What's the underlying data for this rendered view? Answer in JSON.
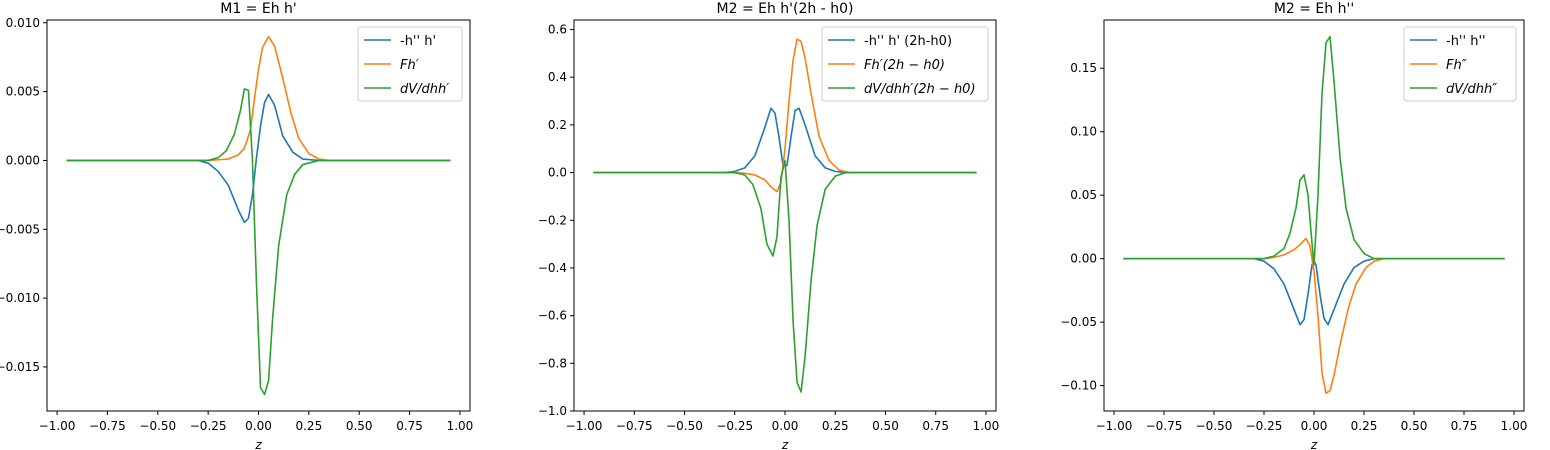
{
  "chart_data": [
    {
      "type": "line",
      "title": "M1 = Eh h'",
      "xlabel": "z",
      "xlim": [
        -1.05,
        1.05
      ],
      "ylim": [
        -0.0182,
        0.0102
      ],
      "xticks": [
        -1.0,
        -0.75,
        -0.5,
        -0.25,
        0.0,
        0.25,
        0.5,
        0.75,
        1.0
      ],
      "xtick_labels": [
        "−1.00",
        "−0.75",
        "−0.50",
        "−0.25",
        "0.00",
        "0.25",
        "0.50",
        "0.75",
        "1.00"
      ],
      "yticks": [
        0.01,
        0.005,
        0.0,
        -0.005,
        -0.01,
        -0.015
      ],
      "ytick_labels": [
        "0.010",
        "0.005",
        "0.000",
        "−0.005",
        "−0.010",
        "−0.015"
      ],
      "legend_position": "top-right",
      "series": [
        {
          "name": "-h'' h'",
          "color": "#1f77b4",
          "points": [
            [
              -0.95,
              0
            ],
            [
              -0.3,
              0.0
            ],
            [
              -0.25,
              -0.0002
            ],
            [
              -0.2,
              -0.0008
            ],
            [
              -0.15,
              -0.0018
            ],
            [
              -0.1,
              -0.0036
            ],
            [
              -0.07,
              -0.0045
            ],
            [
              -0.05,
              -0.0042
            ],
            [
              -0.03,
              -0.0025
            ],
            [
              -0.01,
              0.0002
            ],
            [
              0.01,
              0.0025
            ],
            [
              0.03,
              0.0042
            ],
            [
              0.05,
              0.0048
            ],
            [
              0.08,
              0.004
            ],
            [
              0.12,
              0.0018
            ],
            [
              0.17,
              0.0006
            ],
            [
              0.22,
              0.0001
            ],
            [
              0.3,
              0.0
            ],
            [
              0.95,
              0
            ]
          ]
        },
        {
          "name": "Fh′",
          "color": "#ff7f0e",
          "points": [
            [
              -0.95,
              0
            ],
            [
              -0.25,
              0.0
            ],
            [
              -0.2,
              5e-05
            ],
            [
              -0.15,
              0.0001
            ],
            [
              -0.1,
              0.0004
            ],
            [
              -0.07,
              0.0009
            ],
            [
              -0.04,
              0.0022
            ],
            [
              -0.02,
              0.0045
            ],
            [
              0.0,
              0.0066
            ],
            [
              0.02,
              0.0082
            ],
            [
              0.05,
              0.009
            ],
            [
              0.08,
              0.0083
            ],
            [
              0.12,
              0.006
            ],
            [
              0.16,
              0.0035
            ],
            [
              0.2,
              0.0016
            ],
            [
              0.25,
              0.0005
            ],
            [
              0.3,
              0.0001
            ],
            [
              0.35,
              0.0
            ],
            [
              0.95,
              0
            ]
          ]
        },
        {
          "name": "dV/dhh′",
          "color": "#2ca02c",
          "points": [
            [
              -0.95,
              0
            ],
            [
              -0.25,
              0.0
            ],
            [
              -0.2,
              0.0002
            ],
            [
              -0.16,
              0.0007
            ],
            [
              -0.12,
              0.0019
            ],
            [
              -0.09,
              0.0036
            ],
            [
              -0.07,
              0.0052
            ],
            [
              -0.05,
              0.0051
            ],
            [
              -0.03,
              0.0
            ],
            [
              -0.01,
              -0.009
            ],
            [
              0.01,
              -0.0165
            ],
            [
              0.03,
              -0.017
            ],
            [
              0.05,
              -0.016
            ],
            [
              0.07,
              -0.0115
            ],
            [
              0.1,
              -0.0062
            ],
            [
              0.14,
              -0.0025
            ],
            [
              0.18,
              -0.001
            ],
            [
              0.22,
              -0.0003
            ],
            [
              0.3,
              0.0
            ],
            [
              0.95,
              0
            ]
          ]
        }
      ]
    },
    {
      "type": "line",
      "title": "M2 = Eh h'(2h - h0)",
      "xlabel": "z",
      "xlim": [
        -1.05,
        1.05
      ],
      "ylim": [
        -1.0,
        0.64
      ],
      "xticks": [
        -1.0,
        -0.75,
        -0.5,
        -0.25,
        0.0,
        0.25,
        0.5,
        0.75,
        1.0
      ],
      "xtick_labels": [
        "−1.00",
        "−0.75",
        "−0.50",
        "−0.25",
        "0.00",
        "0.25",
        "0.50",
        "0.75",
        "1.00"
      ],
      "yticks": [
        0.6,
        0.4,
        0.2,
        0.0,
        -0.2,
        -0.4,
        -0.6,
        -0.8,
        -1.0
      ],
      "ytick_labels": [
        "0.6",
        "0.4",
        "0.2",
        "0.0",
        "−0.2",
        "−0.4",
        "−0.6",
        "−0.8",
        "−1.0"
      ],
      "legend_position": "top-right",
      "series": [
        {
          "name": "-h'' h' (2h-h0)",
          "color": "#1f77b4",
          "points": [
            [
              -0.95,
              0
            ],
            [
              -0.3,
              0.0
            ],
            [
              -0.25,
              0.005
            ],
            [
              -0.2,
              0.02
            ],
            [
              -0.15,
              0.07
            ],
            [
              -0.1,
              0.19
            ],
            [
              -0.07,
              0.27
            ],
            [
              -0.05,
              0.25
            ],
            [
              -0.03,
              0.15
            ],
            [
              -0.01,
              0.03
            ],
            [
              0.01,
              0.03
            ],
            [
              0.03,
              0.15
            ],
            [
              0.05,
              0.26
            ],
            [
              0.07,
              0.27
            ],
            [
              0.1,
              0.2
            ],
            [
              0.15,
              0.07
            ],
            [
              0.2,
              0.02
            ],
            [
              0.25,
              0.005
            ],
            [
              0.3,
              0.0
            ],
            [
              0.95,
              0
            ]
          ]
        },
        {
          "name": "Fh′(2h − h0)",
          "color": "#ff7f0e",
          "points": [
            [
              -0.95,
              0
            ],
            [
              -0.25,
              0.0
            ],
            [
              -0.2,
              -0.003
            ],
            [
              -0.15,
              -0.01
            ],
            [
              -0.1,
              -0.03
            ],
            [
              -0.07,
              -0.06
            ],
            [
              -0.04,
              -0.08
            ],
            [
              -0.02,
              -0.04
            ],
            [
              0.0,
              0.1
            ],
            [
              0.02,
              0.3
            ],
            [
              0.04,
              0.47
            ],
            [
              0.06,
              0.56
            ],
            [
              0.08,
              0.55
            ],
            [
              0.1,
              0.48
            ],
            [
              0.13,
              0.33
            ],
            [
              0.17,
              0.15
            ],
            [
              0.22,
              0.05
            ],
            [
              0.27,
              0.01
            ],
            [
              0.32,
              0.0
            ],
            [
              0.95,
              0
            ]
          ]
        },
        {
          "name": "dV/dhh′(2h − h0)",
          "color": "#2ca02c",
          "points": [
            [
              -0.95,
              0
            ],
            [
              -0.25,
              0.0
            ],
            [
              -0.2,
              -0.01
            ],
            [
              -0.16,
              -0.05
            ],
            [
              -0.12,
              -0.15
            ],
            [
              -0.09,
              -0.3
            ],
            [
              -0.06,
              -0.35
            ],
            [
              -0.04,
              -0.27
            ],
            [
              -0.02,
              -0.02
            ],
            [
              0.0,
              0.05
            ],
            [
              0.02,
              -0.2
            ],
            [
              0.04,
              -0.62
            ],
            [
              0.06,
              -0.88
            ],
            [
              0.08,
              -0.92
            ],
            [
              0.1,
              -0.77
            ],
            [
              0.13,
              -0.45
            ],
            [
              0.16,
              -0.22
            ],
            [
              0.2,
              -0.07
            ],
            [
              0.25,
              -0.015
            ],
            [
              0.3,
              0.0
            ],
            [
              0.95,
              0
            ]
          ]
        }
      ]
    },
    {
      "type": "line",
      "title": "M2 = Eh h''",
      "xlabel": "z",
      "xlim": [
        -1.05,
        1.05
      ],
      "ylim": [
        -0.12,
        0.188
      ],
      "xticks": [
        -1.0,
        -0.75,
        -0.5,
        -0.25,
        0.0,
        0.25,
        0.5,
        0.75,
        1.0
      ],
      "xtick_labels": [
        "−1.00",
        "−0.75",
        "−0.50",
        "−0.25",
        "0.00",
        "0.25",
        "0.50",
        "0.75",
        "1.00"
      ],
      "yticks": [
        0.15,
        0.1,
        0.05,
        0.0,
        -0.05,
        -0.1
      ],
      "ytick_labels": [
        "0.15",
        "0.10",
        "0.05",
        "0.00",
        "−0.05",
        "−0.10"
      ],
      "legend_position": "top-right",
      "series": [
        {
          "name": "-h'' h''",
          "color": "#1f77b4",
          "points": [
            [
              -0.95,
              0
            ],
            [
              -0.3,
              0.0
            ],
            [
              -0.25,
              -0.002
            ],
            [
              -0.2,
              -0.008
            ],
            [
              -0.15,
              -0.02
            ],
            [
              -0.1,
              -0.04
            ],
            [
              -0.07,
              -0.052
            ],
            [
              -0.05,
              -0.048
            ],
            [
              -0.03,
              -0.028
            ],
            [
              -0.01,
              -0.005
            ],
            [
              0.0,
              -0.002
            ],
            [
              0.01,
              -0.005
            ],
            [
              0.03,
              -0.028
            ],
            [
              0.05,
              -0.047
            ],
            [
              0.07,
              -0.052
            ],
            [
              0.1,
              -0.04
            ],
            [
              0.15,
              -0.02
            ],
            [
              0.2,
              -0.007
            ],
            [
              0.25,
              -0.002
            ],
            [
              0.3,
              0.0
            ],
            [
              0.95,
              0
            ]
          ]
        },
        {
          "name": "Fh″",
          "color": "#ff7f0e",
          "points": [
            [
              -0.95,
              0
            ],
            [
              -0.25,
              0.0
            ],
            [
              -0.2,
              0.001
            ],
            [
              -0.15,
              0.003
            ],
            [
              -0.1,
              0.007
            ],
            [
              -0.07,
              0.011
            ],
            [
              -0.04,
              0.016
            ],
            [
              -0.02,
              0.01
            ],
            [
              0.0,
              -0.01
            ],
            [
              0.02,
              -0.045
            ],
            [
              0.04,
              -0.09
            ],
            [
              0.06,
              -0.106
            ],
            [
              0.08,
              -0.104
            ],
            [
              0.1,
              -0.092
            ],
            [
              0.13,
              -0.068
            ],
            [
              0.17,
              -0.04
            ],
            [
              0.21,
              -0.02
            ],
            [
              0.26,
              -0.007
            ],
            [
              0.3,
              -0.002
            ],
            [
              0.35,
              0.0
            ],
            [
              0.95,
              0
            ]
          ]
        },
        {
          "name": "dV/dhh″",
          "color": "#2ca02c",
          "points": [
            [
              -0.95,
              0
            ],
            [
              -0.25,
              0.0
            ],
            [
              -0.2,
              0.002
            ],
            [
              -0.15,
              0.008
            ],
            [
              -0.12,
              0.02
            ],
            [
              -0.09,
              0.04
            ],
            [
              -0.07,
              0.062
            ],
            [
              -0.05,
              0.066
            ],
            [
              -0.03,
              0.05
            ],
            [
              -0.01,
              0.012
            ],
            [
              0.0,
              -0.005
            ],
            [
              0.02,
              0.05
            ],
            [
              0.04,
              0.13
            ],
            [
              0.06,
              0.17
            ],
            [
              0.08,
              0.175
            ],
            [
              0.1,
              0.14
            ],
            [
              0.13,
              0.08
            ],
            [
              0.16,
              0.04
            ],
            [
              0.2,
              0.015
            ],
            [
              0.25,
              0.004
            ],
            [
              0.3,
              0.0
            ],
            [
              0.95,
              0
            ]
          ]
        }
      ]
    }
  ]
}
